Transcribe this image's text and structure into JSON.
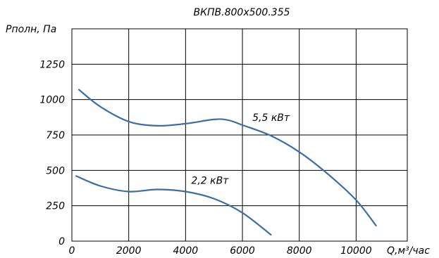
{
  "chart_data": {
    "type": "line",
    "title": "ВКПВ.800х500.355",
    "ylabel": "Pполн, Па",
    "xlabel": "Q,м³/час",
    "xlim": [
      0,
      11800
    ],
    "ylim": [
      0,
      1500
    ],
    "x_ticks": [
      "0",
      "2000",
      "4000",
      "6000",
      "8000",
      "10000"
    ],
    "y_ticks": [
      "0",
      "250",
      "500",
      "750",
      "1000",
      "1250"
    ],
    "grid": true,
    "series": [
      {
        "name": "5,5 кВт",
        "color": "#3a6ea5",
        "points": [
          [
            250,
            1070
          ],
          [
            1000,
            950
          ],
          [
            2000,
            845
          ],
          [
            3000,
            815
          ],
          [
            4000,
            830
          ],
          [
            5000,
            860
          ],
          [
            5500,
            855
          ],
          [
            6000,
            820
          ],
          [
            7000,
            745
          ],
          [
            8000,
            630
          ],
          [
            9000,
            475
          ],
          [
            10000,
            290
          ],
          [
            10700,
            110
          ]
        ]
      },
      {
        "name": "2,2 кВт",
        "color": "#3a6ea5",
        "points": [
          [
            150,
            460
          ],
          [
            1000,
            390
          ],
          [
            2000,
            350
          ],
          [
            3000,
            365
          ],
          [
            4000,
            350
          ],
          [
            5000,
            300
          ],
          [
            6000,
            200
          ],
          [
            7000,
            45
          ]
        ]
      }
    ]
  }
}
